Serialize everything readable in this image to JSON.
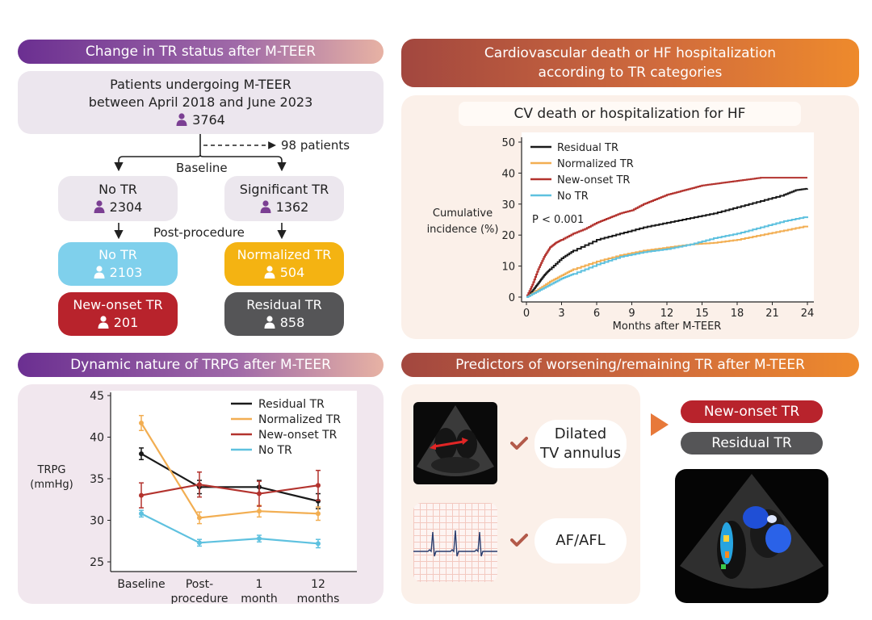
{
  "left_top": {
    "header": "Change in TR status after M-TEER",
    "cohort": {
      "line1": "Patients undergoing M-TEER",
      "line2": "between April 2018 and June 2023",
      "count": "3764"
    },
    "excluded": "98 patients",
    "baseline_label": "Baseline",
    "post_label": "Post-procedure",
    "no_tr": {
      "label": "No TR",
      "count": "2304"
    },
    "sig_tr": {
      "label": "Significant TR",
      "count": "1362"
    },
    "post_no_tr": {
      "label": "No TR",
      "count": "2103"
    },
    "new_onset": {
      "label": "New-onset TR",
      "count": "201"
    },
    "normalized": {
      "label": "Normalized TR",
      "count": "504"
    },
    "residual": {
      "label": "Residual TR",
      "count": "858"
    }
  },
  "right_top": {
    "header": "Cardiovascular death or HF hospitalization\naccording to TR categories",
    "subtitle": "CV death or hospitalization for HF"
  },
  "left_bottom": {
    "header": "Dynamic nature of TRPG after M-TEER"
  },
  "right_bottom": {
    "header": "Predictors of worsening/remaining TR after M-TEER",
    "predictor1": "Dilated\nTV annulus",
    "predictor2": "AF/AFL",
    "outcome1": "New-onset TR",
    "outcome2": "Residual TR"
  },
  "colors": {
    "residual": "#1a1a1a",
    "normalized": "#f2ae52",
    "new_onset": "#b3332e",
    "no_tr": "#5ec1df"
  },
  "chart_data": [
    {
      "type": "line",
      "title": "CV death or hospitalization for HF",
      "xlabel": "Months after M-TEER",
      "ylabel": "Cumulative incidence (%)",
      "annotation": "P < 0.001",
      "xlim": [
        0,
        24
      ],
      "ylim": [
        0,
        50
      ],
      "xticks": [
        0,
        3,
        6,
        9,
        12,
        15,
        18,
        21,
        24
      ],
      "yticks": [
        0,
        10,
        20,
        30,
        40,
        50
      ],
      "legend": [
        "Residual TR",
        "Normalized TR",
        "New-onset TR",
        "No TR"
      ],
      "series": [
        {
          "name": "Residual TR",
          "color": "#1a1a1a",
          "x": [
            0,
            0.5,
            1,
            1.5,
            2,
            3,
            4,
            6,
            8,
            10,
            12,
            14,
            16,
            18,
            20,
            22,
            23,
            24
          ],
          "y": [
            0,
            2,
            4.5,
            7,
            9,
            12.5,
            15,
            18.5,
            20.5,
            22.5,
            24,
            25.5,
            27,
            29,
            31,
            33,
            34.5,
            35
          ]
        },
        {
          "name": "Normalized TR",
          "color": "#f2ae52",
          "x": [
            0,
            1,
            2,
            3,
            4,
            6,
            8,
            10,
            12,
            14,
            16,
            18,
            20,
            22,
            24
          ],
          "y": [
            0,
            2.5,
            5,
            7,
            9,
            11.5,
            13.5,
            15,
            16,
            17,
            17.5,
            18.5,
            20,
            21.5,
            23
          ]
        },
        {
          "name": "New-onset TR",
          "color": "#b3332e",
          "x": [
            0,
            0.5,
            1,
            1.5,
            2,
            2.5,
            3,
            4,
            5,
            6,
            7,
            8,
            9,
            10,
            11,
            12,
            13,
            14,
            15,
            16,
            17,
            18,
            19,
            20,
            24
          ],
          "y": [
            0,
            4,
            9,
            13,
            16,
            17.5,
            18.5,
            20.5,
            22,
            24,
            25.5,
            27,
            28,
            30,
            31.5,
            33,
            34,
            35,
            36,
            36.5,
            37,
            37.5,
            38,
            38.5,
            38.5
          ]
        },
        {
          "name": "No TR",
          "color": "#5ec1df",
          "x": [
            0,
            1,
            2,
            3,
            4,
            6,
            8,
            10,
            12,
            14,
            16,
            18,
            20,
            22,
            24
          ],
          "y": [
            0,
            2,
            4,
            6,
            7.5,
            10.5,
            13,
            14.5,
            15.5,
            17,
            19,
            20.5,
            22.5,
            24.5,
            26
          ]
        }
      ]
    },
    {
      "type": "line",
      "title": "Dynamic nature of TRPG after M-TEER",
      "ylabel": "TRPG (mmHg)",
      "ylim": [
        25,
        45
      ],
      "yticks": [
        25,
        30,
        35,
        40,
        45
      ],
      "categories": [
        "Baseline",
        "Post-\nprocedure",
        "1\nmonth",
        "12\nmonths"
      ],
      "legend": [
        "Residual TR",
        "Normalized TR",
        "New-onset TR",
        "No TR"
      ],
      "series": [
        {
          "name": "Residual TR",
          "color": "#1a1a1a",
          "values": [
            38,
            34,
            34,
            32.3
          ],
          "err": [
            0.7,
            0.8,
            0.8,
            0.9
          ]
        },
        {
          "name": "Normalized TR",
          "color": "#f2ae52",
          "values": [
            41.7,
            30.3,
            31.1,
            30.8
          ],
          "err": [
            0.9,
            0.7,
            0.7,
            0.8
          ]
        },
        {
          "name": "New-onset TR",
          "color": "#b3332e",
          "values": [
            33,
            34.3,
            33.2,
            34.2
          ],
          "err": [
            1.5,
            1.5,
            1.5,
            1.8
          ]
        },
        {
          "name": "No TR",
          "color": "#5ec1df",
          "values": [
            30.8,
            27.3,
            27.8,
            27.2
          ],
          "err": [
            0.4,
            0.4,
            0.4,
            0.5
          ]
        }
      ]
    }
  ]
}
